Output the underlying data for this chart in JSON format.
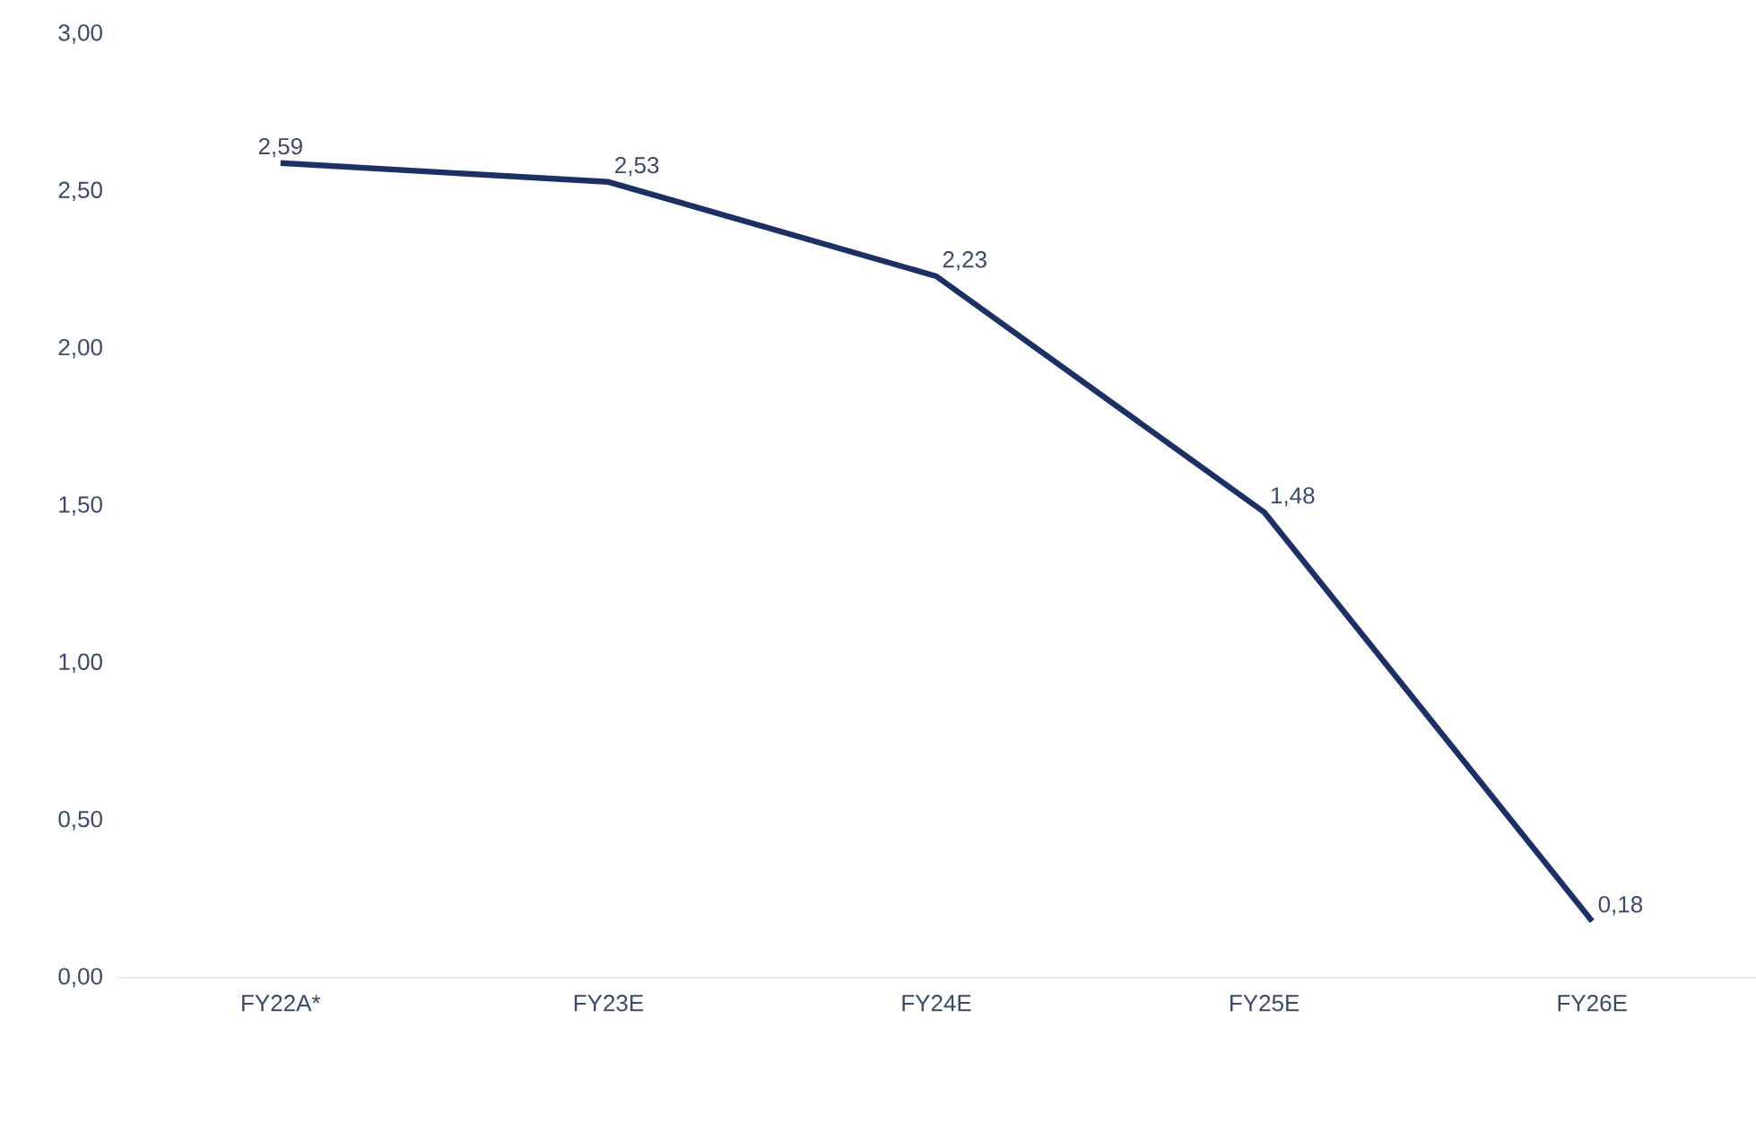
{
  "chart_data": {
    "type": "line",
    "categories": [
      "FY22A*",
      "FY23E",
      "FY24E",
      "FY25E",
      "FY26E"
    ],
    "values": [
      2.59,
      2.53,
      2.23,
      1.48,
      0.18
    ],
    "value_labels": [
      "2,59",
      "2,53",
      "2,23",
      "1,48",
      "0,18"
    ],
    "color": "#1b3067",
    "marker": "none",
    "line_style": "solid",
    "grid": false,
    "ylim": [
      0,
      3
    ],
    "yticks": [
      {
        "value": 0,
        "label": "0,00"
      },
      {
        "value": 0.5,
        "label": "0,50"
      },
      {
        "value": 1,
        "label": "1,00"
      },
      {
        "value": 1.5,
        "label": "1,50"
      },
      {
        "value": 2,
        "label": "2,00"
      },
      {
        "value": 2.5,
        "label": "2,50"
      },
      {
        "value": 3,
        "label": "3,00"
      }
    ]
  }
}
